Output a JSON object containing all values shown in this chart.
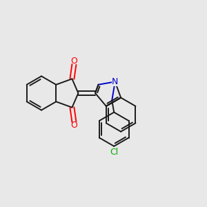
{
  "bg_color": "#e8e8e8",
  "bond_color": "#1a1a1a",
  "o_color": "#ff0000",
  "n_color": "#0000cc",
  "cl_color": "#00aa00",
  "lw": 1.4,
  "dbo": 0.1,
  "figsize": [
    3.0,
    3.0
  ],
  "dpi": 100,
  "xlim": [
    0,
    10
  ],
  "ylim": [
    0,
    10
  ]
}
